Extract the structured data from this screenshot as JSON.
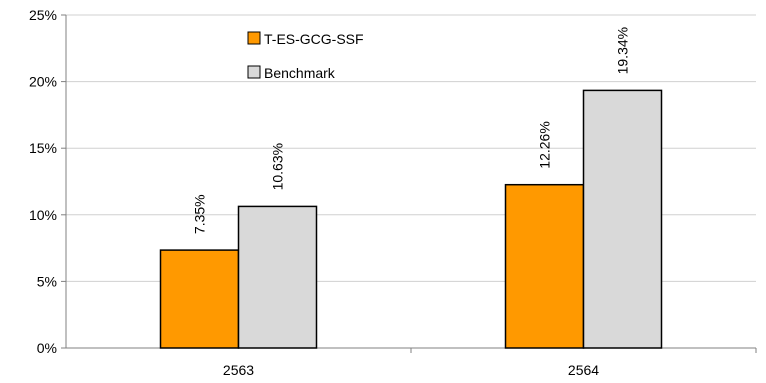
{
  "chart_data": {
    "type": "bar",
    "title": "",
    "xlabel": "",
    "ylabel": "",
    "categories": [
      "2563",
      "2564"
    ],
    "series": [
      {
        "name": "T-ES-GCG-SSF",
        "values": [
          7.35,
          12.26
        ],
        "labels": [
          "7.35%",
          "12.26%"
        ],
        "color": "#FF9900"
      },
      {
        "name": "Benchmark",
        "values": [
          10.63,
          19.34
        ],
        "labels": [
          "10.63%",
          "19.34%"
        ],
        "color": "#D9D9D9"
      }
    ],
    "ylim": [
      0,
      25
    ],
    "yticks": [
      0,
      5,
      10,
      15,
      20,
      25
    ],
    "ytick_labels": [
      "0%",
      "5%",
      "10%",
      "15%",
      "20%",
      "25%"
    ],
    "grid": true,
    "legend_position": "top-center"
  }
}
